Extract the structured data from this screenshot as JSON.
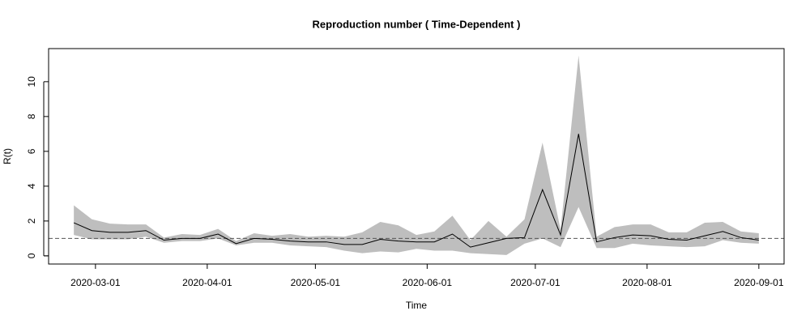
{
  "chart_data": {
    "type": "line",
    "title": "Reproduction number ( Time-Dependent )",
    "xlabel": "Time",
    "ylabel": "R(t)",
    "x": [
      "2020-02-24",
      "2020-02-29",
      "2020-03-05",
      "2020-03-10",
      "2020-03-15",
      "2020-03-20",
      "2020-03-25",
      "2020-03-30",
      "2020-04-04",
      "2020-04-09",
      "2020-04-14",
      "2020-04-19",
      "2020-04-24",
      "2020-04-29",
      "2020-05-04",
      "2020-05-09",
      "2020-05-14",
      "2020-05-19",
      "2020-05-24",
      "2020-05-29",
      "2020-06-03",
      "2020-06-08",
      "2020-06-13",
      "2020-06-18",
      "2020-06-23",
      "2020-06-28",
      "2020-07-03",
      "2020-07-08",
      "2020-07-13",
      "2020-07-18",
      "2020-07-23",
      "2020-07-28",
      "2020-08-02",
      "2020-08-07",
      "2020-08-12",
      "2020-08-17",
      "2020-08-22",
      "2020-08-27",
      "2020-09-01"
    ],
    "values": [
      1.9,
      1.45,
      1.35,
      1.35,
      1.45,
      0.9,
      1.0,
      1.0,
      1.25,
      0.7,
      1.0,
      0.95,
      0.85,
      0.8,
      0.8,
      0.65,
      0.65,
      0.95,
      0.85,
      0.8,
      0.8,
      1.25,
      0.5,
      0.75,
      1.0,
      1.05,
      3.8,
      1.2,
      7.0,
      0.8,
      1.05,
      1.2,
      1.15,
      0.95,
      0.9,
      1.15,
      1.4,
      1.05,
      0.9
    ],
    "lower": [
      1.2,
      0.95,
      0.95,
      0.95,
      1.1,
      0.75,
      0.85,
      0.85,
      1.0,
      0.6,
      0.75,
      0.75,
      0.6,
      0.55,
      0.5,
      0.3,
      0.15,
      0.25,
      0.2,
      0.4,
      0.3,
      0.3,
      0.15,
      0.1,
      0.05,
      0.7,
      1.0,
      0.5,
      2.8,
      0.45,
      0.45,
      0.7,
      0.6,
      0.55,
      0.5,
      0.55,
      0.9,
      0.75,
      0.7
    ],
    "upper": [
      2.9,
      2.1,
      1.85,
      1.8,
      1.8,
      1.05,
      1.25,
      1.2,
      1.55,
      0.85,
      1.3,
      1.15,
      1.25,
      1.1,
      1.15,
      1.1,
      1.35,
      1.95,
      1.75,
      1.2,
      1.4,
      2.3,
      0.9,
      2.0,
      1.1,
      2.1,
      6.5,
      1.5,
      11.5,
      1.1,
      1.65,
      1.8,
      1.8,
      1.35,
      1.35,
      1.9,
      1.95,
      1.4,
      1.3
    ],
    "color": "#000000",
    "band_color": "#bebebe",
    "hline": 1,
    "hline_color": "#555555",
    "xlim": [
      "2020-02-17",
      "2020-09-08"
    ],
    "xticks": [
      "2020-03-01",
      "2020-04-01",
      "2020-05-01",
      "2020-06-01",
      "2020-07-01",
      "2020-08-01",
      "2020-09-01"
    ],
    "ylim": [
      -0.47,
      11.9
    ],
    "yticks": [
      0,
      2,
      4,
      6,
      8,
      10
    ]
  }
}
